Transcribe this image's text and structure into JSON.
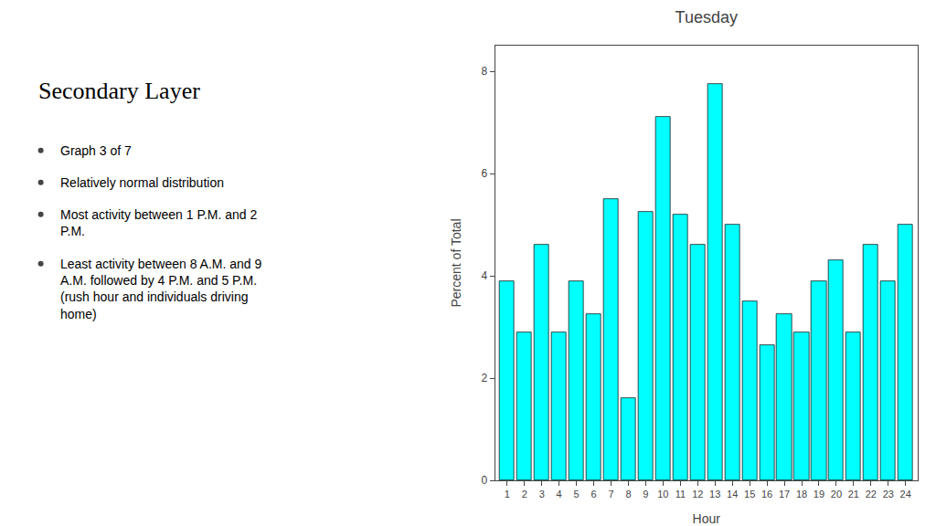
{
  "chart_data": {
    "type": "bar",
    "title": "Tuesday",
    "xlabel": "Hour",
    "ylabel": "Percent of Total",
    "x": [
      1,
      2,
      3,
      4,
      5,
      6,
      7,
      8,
      9,
      10,
      11,
      12,
      13,
      14,
      15,
      16,
      17,
      18,
      19,
      20,
      21,
      22,
      23,
      24
    ],
    "values": [
      3.9,
      2.9,
      4.6,
      2.9,
      3.9,
      3.25,
      5.5,
      1.6,
      5.25,
      7.1,
      5.2,
      4.6,
      7.75,
      5.0,
      3.5,
      2.65,
      3.25,
      2.9,
      3.9,
      4.3,
      2.9,
      4.6,
      3.9,
      5.0
    ],
    "color": "#00FFFF",
    "xlim": [
      0.3,
      24.7
    ],
    "xticks": [
      1,
      2,
      3,
      4,
      5,
      6,
      7,
      8,
      9,
      10,
      11,
      12,
      13,
      14,
      15,
      16,
      17,
      18,
      19,
      20,
      21,
      22,
      23,
      24
    ],
    "ylim": [
      0,
      8.5
    ],
    "yticks": [
      0,
      2,
      4,
      6,
      8
    ],
    "grid": false,
    "annotations": [
      "Secondary Layer",
      "Graph 3 of 7",
      "Relatively normal distribution",
      "Most activity between 1 P.M. and 2\nP.M.",
      "Least activity between 8 A.M. and 9\nA.M. followed by 4 P.M. and 5 P.M.\n(rush hour and individuals driving\nhome)"
    ]
  }
}
